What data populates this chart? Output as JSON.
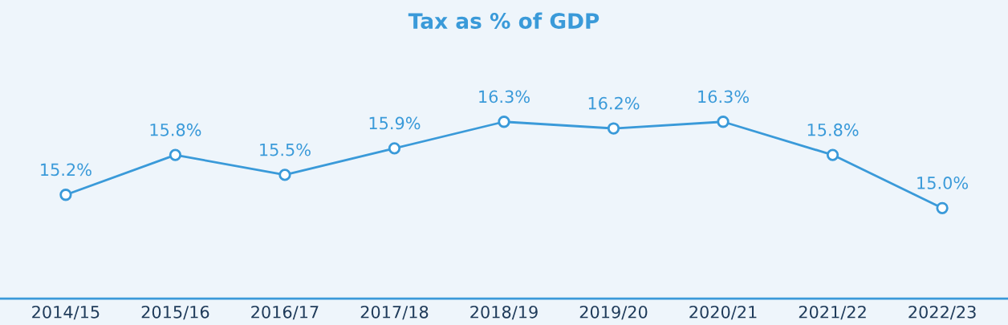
{
  "chart_data": {
    "type": "line",
    "title": "Tax as % of GDP",
    "categories": [
      "2014/15",
      "2015/16",
      "2016/17",
      "2017/18",
      "2018/19",
      "2019/20",
      "2020/21",
      "2021/22",
      "2022/23"
    ],
    "series": [
      {
        "color": "#3a9ad9",
        "values": [
          15.2,
          15.8,
          15.5,
          15.9,
          16.3,
          16.2,
          16.3,
          15.8,
          15.0
        ],
        "value_labels": [
          "15.2%",
          "15.8%",
          "15.5%",
          "15.9%",
          "16.3%",
          "16.2%",
          "16.3%",
          "15.8%",
          "15.0%"
        ]
      }
    ],
    "marker": "circle",
    "line_style": "solid",
    "grid": false,
    "legend": false,
    "tick_labels": "x"
  }
}
